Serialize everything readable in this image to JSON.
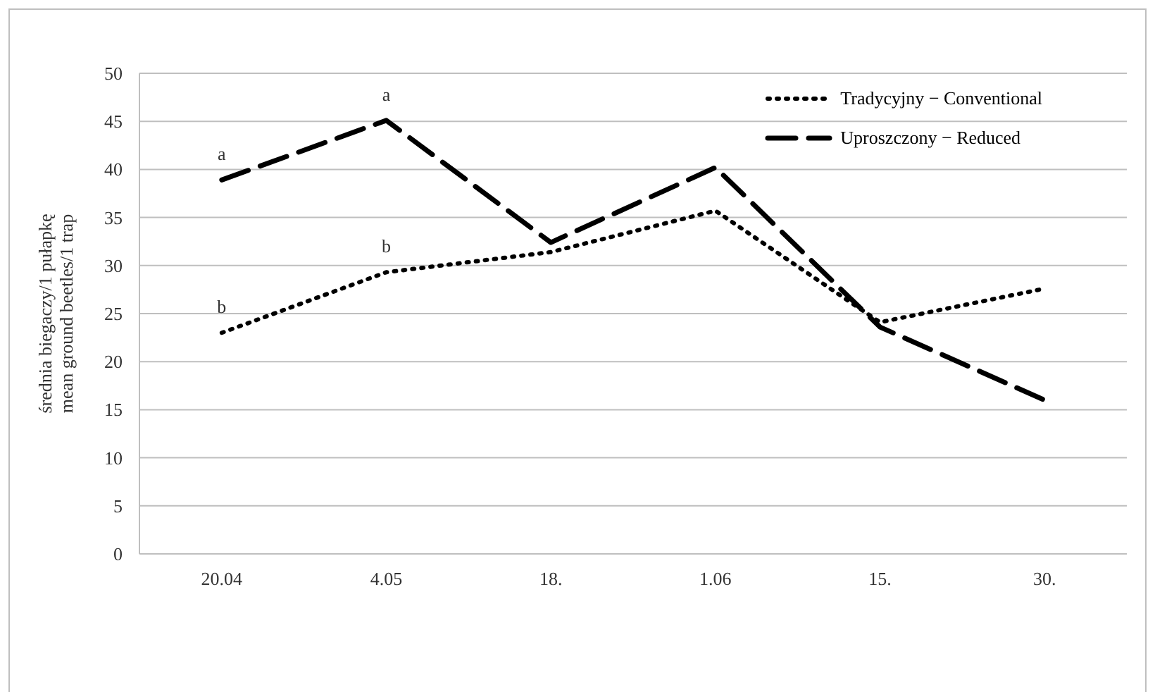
{
  "chart_data": {
    "type": "line",
    "ylabel": "średnia biegaczy/1 pułapkę\nmean ground beetles/1 trap",
    "categories": [
      "20.04",
      "4.05",
      "18.",
      "1.06",
      "15.",
      "30."
    ],
    "series": [
      {
        "name": "Tradycyjny − Conventional",
        "color": "#000000",
        "line_style": "dotted",
        "values": [
          23,
          29.3,
          31.4,
          35.7,
          24.1,
          27.6
        ]
      },
      {
        "name": "Uproszczony − Reduced",
        "color": "#000000",
        "line_style": "dashed",
        "values": [
          38.9,
          45.1,
          32.4,
          40.2,
          23.6,
          16
        ]
      }
    ],
    "ylim": [
      0,
      50
    ],
    "yticks": [
      0,
      5,
      10,
      15,
      20,
      25,
      30,
      35,
      40,
      45,
      50
    ],
    "grid": "y",
    "legend": "top right",
    "marker": "none",
    "annotations": [
      {
        "text": "a",
        "x": "20.04",
        "y": 38.9
      },
      {
        "text": "a",
        "x": "4.05",
        "y": 45.1
      },
      {
        "text": "b",
        "x": "20.04",
        "y": 23
      },
      {
        "text": "b",
        "x": "4.05",
        "y": 29.3
      }
    ]
  }
}
